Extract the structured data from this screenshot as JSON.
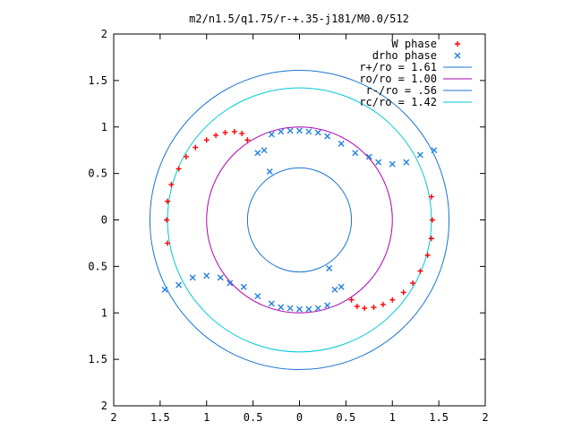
{
  "chart_data": {
    "type": "scatter",
    "title": "m2/n1.5/q1.75/r-+.35-j181/M0.0/512",
    "xlim": [
      -2,
      2
    ],
    "ylim": [
      -2,
      2
    ],
    "x_tick_labels": [
      "2",
      "1.5",
      "1",
      "0.5",
      "0",
      "0.5",
      "1",
      "1.5",
      "2"
    ],
    "y_tick_labels": [
      "2",
      "1.5",
      "1",
      "0.5",
      "0",
      "0.5",
      "1",
      "1.5",
      "2"
    ],
    "grid": false,
    "legend_position": "top-right",
    "series": [
      {
        "name": "W phase",
        "marker": "+",
        "color": "#ff0000",
        "points": [
          [
            -1.12,
            0.78
          ],
          [
            -1.0,
            0.86
          ],
          [
            -0.9,
            0.91
          ],
          [
            -0.8,
            0.94
          ],
          [
            -0.7,
            0.95
          ],
          [
            -0.62,
            0.93
          ],
          [
            -0.56,
            0.86
          ],
          [
            -1.22,
            0.68
          ],
          [
            -1.3,
            0.55
          ],
          [
            -1.38,
            0.38
          ],
          [
            -1.42,
            0.2
          ],
          [
            -1.43,
            0.0
          ],
          [
            -1.42,
            -0.25
          ],
          [
            1.12,
            -0.78
          ],
          [
            1.0,
            -0.86
          ],
          [
            0.9,
            -0.91
          ],
          [
            0.8,
            -0.94
          ],
          [
            0.7,
            -0.95
          ],
          [
            0.62,
            -0.93
          ],
          [
            0.56,
            -0.86
          ],
          [
            1.22,
            -0.68
          ],
          [
            1.3,
            -0.55
          ],
          [
            1.38,
            -0.38
          ],
          [
            1.42,
            -0.2
          ],
          [
            1.43,
            0.0
          ],
          [
            1.42,
            0.25
          ]
        ]
      },
      {
        "name": "drho phase",
        "marker": "x",
        "color": "#2080e0",
        "points": [
          [
            -0.45,
            0.72
          ],
          [
            -0.38,
            0.75
          ],
          [
            -0.32,
            0.52
          ],
          [
            -0.3,
            0.92
          ],
          [
            -0.2,
            0.95
          ],
          [
            -0.1,
            0.96
          ],
          [
            0.0,
            0.96
          ],
          [
            0.1,
            0.95
          ],
          [
            0.2,
            0.94
          ],
          [
            0.3,
            0.9
          ],
          [
            0.45,
            0.82
          ],
          [
            0.6,
            0.72
          ],
          [
            0.75,
            0.68
          ],
          [
            0.85,
            0.62
          ],
          [
            1.0,
            0.6
          ],
          [
            1.15,
            0.62
          ],
          [
            1.3,
            0.7
          ],
          [
            1.45,
            0.75
          ],
          [
            0.45,
            -0.72
          ],
          [
            0.38,
            -0.75
          ],
          [
            0.32,
            -0.52
          ],
          [
            0.3,
            -0.92
          ],
          [
            0.2,
            -0.95
          ],
          [
            0.1,
            -0.96
          ],
          [
            0.0,
            -0.96
          ],
          [
            -0.1,
            -0.95
          ],
          [
            -0.2,
            -0.94
          ],
          [
            -0.3,
            -0.9
          ],
          [
            -0.45,
            -0.82
          ],
          [
            -0.6,
            -0.72
          ],
          [
            -0.75,
            -0.68
          ],
          [
            -0.85,
            -0.62
          ],
          [
            -1.0,
            -0.6
          ],
          [
            -1.15,
            -0.62
          ],
          [
            -1.3,
            -0.7
          ],
          [
            -1.45,
            -0.75
          ]
        ]
      }
    ],
    "circles": [
      {
        "name": "r+/ro = 1.61",
        "radius": 1.61,
        "color": "#1a75d1"
      },
      {
        "name": "ro/ro = 1.00",
        "radius": 1.0,
        "color": "#b000b0"
      },
      {
        "name": "r-/ro = .56",
        "radius": 0.56,
        "color": "#1a75d1"
      },
      {
        "name": "rc/ro = 1.42",
        "radius": 1.42,
        "color": "#00c8d8"
      }
    ]
  }
}
